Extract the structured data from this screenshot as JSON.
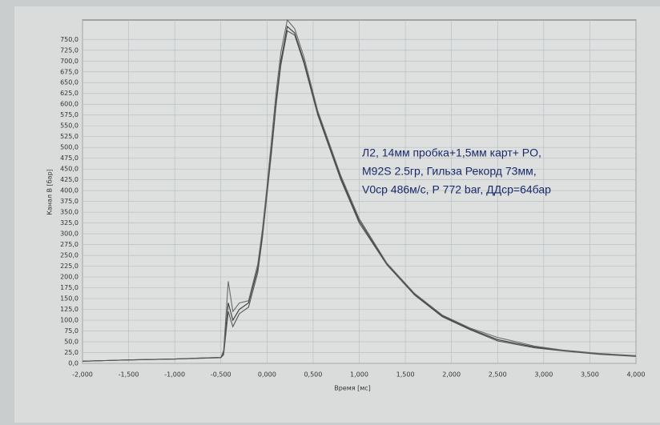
{
  "chart_data": {
    "type": "line",
    "x_label": "Время [мс]",
    "y_label": "Канал B [бар]",
    "annotations": [
      "Л2, 14мм пробка+1,5мм карт+ PO,",
      "M92S 2.5гр, Гильза Рекорд 73мм,",
      "V0ср 486м/с, Р 772 bar, ДДср=64бар"
    ],
    "x": [
      -2,
      -1.5,
      -1,
      -0.5,
      -0.47,
      -0.42,
      -0.37,
      -0.3,
      -0.2,
      -0.1,
      -0.05,
      0,
      0.05,
      0.1,
      0.15,
      0.22,
      0.3,
      0.4,
      0.55,
      0.8,
      1.0,
      1.3,
      1.6,
      1.9,
      2.2,
      2.5,
      2.9,
      3.2,
      3.6,
      4.0
    ],
    "series": [
      {
        "color": "#3a3a3a",
        "values": [
          5,
          8,
          10,
          14,
          25,
          140,
          100,
          125,
          140,
          220,
          300,
          400,
          500,
          610,
          700,
          780,
          765,
          700,
          580,
          430,
          330,
          230,
          160,
          110,
          80,
          55,
          38,
          30,
          22,
          17
        ]
      },
      {
        "color": "#6a6a6a",
        "values": [
          5,
          8,
          10,
          14,
          30,
          190,
          120,
          140,
          145,
          230,
          310,
          410,
          520,
          630,
          720,
          795,
          775,
          710,
          585,
          435,
          335,
          232,
          162,
          112,
          82,
          60,
          40,
          31,
          23,
          18
        ]
      },
      {
        "color": "#555555",
        "values": [
          5,
          8,
          10,
          13,
          20,
          120,
          85,
          115,
          130,
          210,
          290,
          390,
          490,
          600,
          690,
          770,
          760,
          695,
          575,
          425,
          325,
          228,
          158,
          108,
          78,
          52,
          36,
          29,
          21,
          16
        ]
      }
    ],
    "xlim": [
      -2,
      4
    ],
    "ylim": [
      0,
      795
    ],
    "xticks": [
      {
        "value": -2,
        "label": "-2,000"
      },
      {
        "value": -1.5,
        "label": "-1,500"
      },
      {
        "value": -1,
        "label": "-1,000"
      },
      {
        "value": -0.5,
        "label": "-0,500"
      },
      {
        "value": 0,
        "label": "0,000"
      },
      {
        "value": 0.5,
        "label": "0,500"
      },
      {
        "value": 1,
        "label": "1,000"
      },
      {
        "value": 1.5,
        "label": "1,500"
      },
      {
        "value": 2,
        "label": "2,000"
      },
      {
        "value": 2.5,
        "label": "2,500"
      },
      {
        "value": 3,
        "label": "3,000"
      },
      {
        "value": 3.5,
        "label": "3,500"
      },
      {
        "value": 4,
        "label": "4,000"
      }
    ],
    "yticks": [
      {
        "value": 0,
        "label": "0,0"
      },
      {
        "value": 25,
        "label": "25,0"
      },
      {
        "value": 50,
        "label": "50,0"
      },
      {
        "value": 75,
        "label": "75,0"
      },
      {
        "value": 100,
        "label": "100,0"
      },
      {
        "value": 125,
        "label": "125,0"
      },
      {
        "value": 150,
        "label": "150,0"
      },
      {
        "value": 175,
        "label": "175,0"
      },
      {
        "value": 200,
        "label": "200,0"
      },
      {
        "value": 225,
        "label": "225,0"
      },
      {
        "value": 250,
        "label": "250,0"
      },
      {
        "value": 275,
        "label": "275,0"
      },
      {
        "value": 300,
        "label": "300,0"
      },
      {
        "value": 325,
        "label": "325,0"
      },
      {
        "value": 350,
        "label": "350,0"
      },
      {
        "value": 375,
        "label": "375,0"
      },
      {
        "value": 400,
        "label": "400,0"
      },
      {
        "value": 425,
        "label": "425,0"
      },
      {
        "value": 450,
        "label": "450,0"
      },
      {
        "value": 475,
        "label": "475,0"
      },
      {
        "value": 500,
        "label": "500,0"
      },
      {
        "value": 525,
        "label": "525,0"
      },
      {
        "value": 550,
        "label": "550,0"
      },
      {
        "value": 575,
        "label": "575,0"
      },
      {
        "value": 600,
        "label": "600,0"
      },
      {
        "value": 625,
        "label": "625,0"
      },
      {
        "value": 650,
        "label": "650,0"
      },
      {
        "value": 675,
        "label": "675,0"
      },
      {
        "value": 700,
        "label": "700,0"
      },
      {
        "value": 725,
        "label": "725,0"
      },
      {
        "value": 750,
        "label": "750,0"
      }
    ],
    "grid": true
  }
}
